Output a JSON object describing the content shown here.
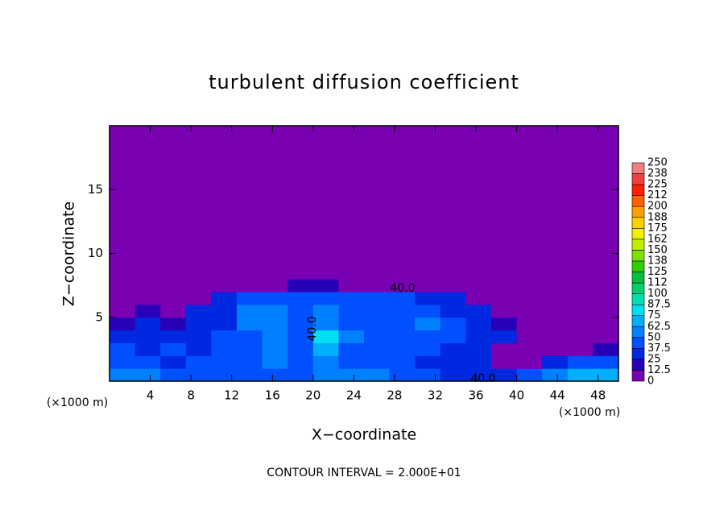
{
  "chart_data": {
    "type": "contourf",
    "title": "turbulent diffusion coefficient",
    "xlabel": "X−coordinate",
    "ylabel": "Z−coordinate",
    "x_unit": "(×1000 m)",
    "y_unit": "(×1000 m)",
    "footer": "CONTOUR INTERVAL = 2.000E+01",
    "xlim": [
      0,
      50
    ],
    "xticks": [
      4,
      8,
      12,
      16,
      20,
      24,
      28,
      32,
      36,
      40,
      44,
      48
    ],
    "ylim": [
      0,
      20
    ],
    "yticks": [
      5,
      10,
      15
    ],
    "x_edges": [
      0,
      2.5,
      5,
      7.5,
      10,
      12.5,
      15,
      17.5,
      20,
      22.5,
      25,
      27.5,
      30,
      32.5,
      35,
      37.5,
      40,
      42.5,
      45,
      47.5,
      50
    ],
    "z_edges": [
      0,
      1,
      2,
      3,
      4,
      5,
      6,
      7,
      8,
      9
    ],
    "values": [
      [
        60,
        50,
        45,
        40,
        45,
        40,
        45,
        40,
        55,
        60,
        50,
        45,
        40,
        35,
        30,
        30,
        40,
        60,
        65,
        65
      ],
      [
        45,
        40,
        35,
        40,
        45,
        40,
        50,
        45,
        60,
        45,
        40,
        40,
        35,
        30,
        25,
        10,
        5,
        30,
        40,
        45
      ],
      [
        40,
        35,
        40,
        30,
        40,
        45,
        55,
        40,
        70,
        45,
        45,
        40,
        40,
        35,
        30,
        5,
        0,
        5,
        10,
        20
      ],
      [
        30,
        35,
        30,
        35,
        40,
        40,
        50,
        45,
        75,
        50,
        45,
        40,
        45,
        40,
        35,
        25,
        0,
        0,
        0,
        10
      ],
      [
        20,
        25,
        20,
        30,
        35,
        50,
        55,
        40,
        60,
        45,
        40,
        40,
        50,
        40,
        35,
        20,
        5,
        0,
        0,
        5
      ],
      [
        5,
        15,
        10,
        25,
        35,
        55,
        50,
        45,
        55,
        40,
        40,
        45,
        40,
        35,
        30,
        10,
        0,
        0,
        0,
        0
      ],
      [
        0,
        0,
        0,
        10,
        30,
        45,
        45,
        40,
        45,
        40,
        40,
        40,
        35,
        30,
        10,
        0,
        0,
        0,
        0,
        0
      ],
      [
        0,
        0,
        0,
        0,
        0,
        5,
        10,
        20,
        15,
        10,
        10,
        5,
        0,
        0,
        0,
        0,
        0,
        0,
        0,
        0
      ],
      [
        0,
        0,
        0,
        0,
        0,
        0,
        0,
        5,
        0,
        0,
        0,
        0,
        0,
        0,
        0,
        0,
        0,
        0,
        0,
        0
      ]
    ],
    "annotations": [
      "40.0",
      "40.0",
      "40.0"
    ],
    "colorbar_ticks": [
      0,
      12.5,
      25,
      37.5,
      50,
      62.5,
      75,
      87.5,
      100,
      {
        "value": 112.5,
        "label": "112"
      },
      125,
      {
        "value": 137.5,
        "label": "138"
      },
      150,
      {
        "value": 162.5,
        "label": "162"
      },
      175,
      {
        "value": 187.5,
        "label": "188"
      },
      200,
      {
        "value": 212.5,
        "label": "212"
      },
      225,
      {
        "value": 237.5,
        "label": "238"
      },
      250
    ],
    "colors": [
      "#7a00b4",
      "#2800b8",
      "#0028e0",
      "#0050ff",
      "#0080ff",
      "#00b0ff",
      "#00e0f0",
      "#00e0b0",
      "#00d070",
      "#00c040",
      "#30d000",
      "#80e000",
      "#c0f000",
      "#f0f000",
      "#ffd000",
      "#ffa000",
      "#ff6000",
      "#ff2000",
      "#f04040",
      "#f08080"
    ]
  }
}
